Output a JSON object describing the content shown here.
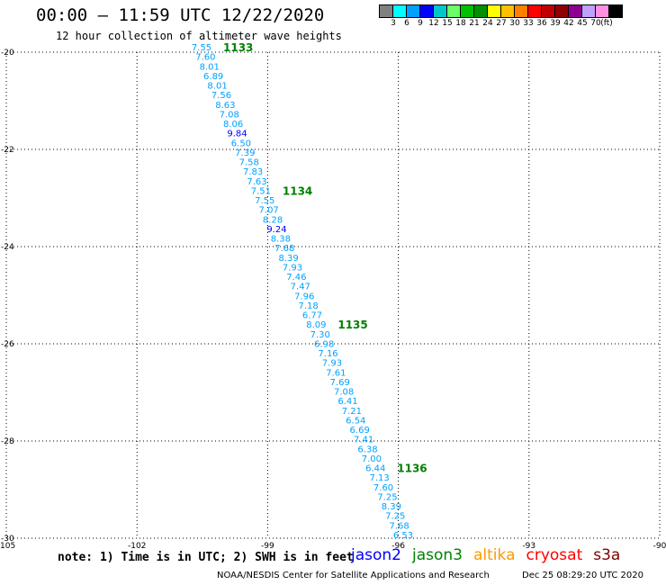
{
  "header": {
    "title": "00:00 – 11:59 UTC 12/22/2020",
    "subtitle": "12 hour collection of altimeter wave heights"
  },
  "legend": {
    "unit": "(ft)",
    "colors": [
      "#808080",
      "#00ffff",
      "#00a0ff",
      "#0000ff",
      "#00c8c8",
      "#66ff66",
      "#00c000",
      "#009000",
      "#ffff00",
      "#ffc000",
      "#ff8000",
      "#ff0000",
      "#c00000",
      "#900000",
      "#900090",
      "#c0a0ff",
      "#ff90e0",
      "#000000"
    ],
    "labels": [
      "3",
      "6",
      "9",
      "12",
      "15",
      "18",
      "21",
      "24",
      "27",
      "30",
      "33",
      "36",
      "39",
      "42",
      "45",
      "70"
    ]
  },
  "map": {
    "lon_range": [
      -105,
      -90
    ],
    "lat_range": [
      -30,
      -20
    ],
    "lon_ticks": [
      "-105",
      "-102",
      "-99",
      "-96",
      "-93",
      "-90"
    ],
    "lat_ticks": [
      "-20",
      "-22",
      "-24",
      "-26",
      "-28",
      "-30"
    ]
  },
  "track": {
    "default_color": "#00a0ff",
    "high_color": "#0000ff",
    "values": [
      "7.55",
      "7.60",
      "8.01",
      "6.89",
      "8.01",
      "7.56",
      "8.63",
      "7.08",
      "8.06",
      "9.84",
      "6.50",
      "7.39",
      "7.58",
      "7.83",
      "7.63",
      "7.51",
      "7.55",
      "7.07",
      "8.28",
      "9.24",
      "8.38",
      "7.68",
      "8.39",
      "7.93",
      "7.46",
      "7.47",
      "7.96",
      "7.18",
      "6.77",
      "8.09",
      "7.30",
      "6.98",
      "7.16",
      "7.93",
      "7.61",
      "7.69",
      "7.08",
      "6.41",
      "7.21",
      "6.54",
      "6.69",
      "7.41",
      "6.38",
      "7.00",
      "6.44",
      "7.13",
      "7.60",
      "7.25",
      "8.39",
      "7.25",
      "7.68",
      "6.53"
    ]
  },
  "times": {
    "color": "#008000",
    "items": [
      {
        "label": "1133",
        "index": 0
      },
      {
        "label": "1134",
        "index": 15
      },
      {
        "label": "1135",
        "index": 29
      },
      {
        "label": "1136",
        "index": 44
      }
    ]
  },
  "footer": {
    "note": "note: 1) Time is in UTC; 2) SWH is in feet",
    "satellites": [
      {
        "name": "jason2",
        "color": "#0000ff"
      },
      {
        "name": "jason3",
        "color": "#008000"
      },
      {
        "name": "altika",
        "color": "#ff9900"
      },
      {
        "name": "cryosat",
        "color": "#ff0000"
      },
      {
        "name": "s3a",
        "color": "#800000"
      }
    ],
    "credit": "NOAA/NESDIS Center for Satellite Applications and Research",
    "timestamp": "Dec 25 08:29:20 UTC 2020"
  }
}
